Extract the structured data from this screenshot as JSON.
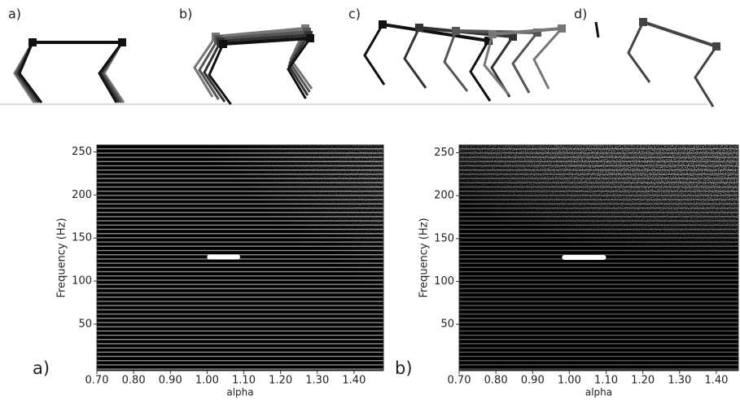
{
  "robot_panels": [
    "a)",
    "b)",
    "c)",
    "d)"
  ],
  "chart_data": [
    {
      "type": "spectrogram",
      "panel_label": "a)",
      "y_label": "Frequency (Hz)",
      "x_label": "alpha",
      "xlim": [
        0.7,
        1.48
      ],
      "ylim": [
        -4,
        258
      ],
      "xticks": [
        {
          "value": 0.7,
          "label": "0.70"
        },
        {
          "value": 0.8,
          "label": "0.80"
        },
        {
          "value": 0.9,
          "label": "0.90"
        },
        {
          "value": 1.0,
          "label": "1.00"
        },
        {
          "value": 1.1,
          "label": "1.10"
        },
        {
          "value": 1.2,
          "label": "1.20"
        },
        {
          "value": 1.3,
          "label": "1.30"
        },
        {
          "value": 1.4,
          "label": "1.40"
        }
      ],
      "yticks": [
        50,
        100,
        150,
        200,
        250
      ]
    },
    {
      "type": "spectrogram",
      "panel_label": "b)",
      "y_label": "Frequency (Hz)",
      "x_label": "alpha",
      "xlim": [
        0.7,
        1.46
      ],
      "ylim": [
        -4,
        259
      ],
      "xticks": [
        {
          "value": 0.7,
          "label": "0.70"
        },
        {
          "value": 0.8,
          "label": "0.80"
        },
        {
          "value": 0.9,
          "label": "0.90"
        },
        {
          "value": 1.0,
          "label": "1.00"
        },
        {
          "value": 1.1,
          "label": "1.10"
        },
        {
          "value": 1.2,
          "label": "1.20"
        },
        {
          "value": 1.3,
          "label": "1.30"
        },
        {
          "value": 1.4,
          "label": "1.40"
        }
      ],
      "yticks": [
        50,
        100,
        150,
        200,
        250
      ]
    }
  ]
}
